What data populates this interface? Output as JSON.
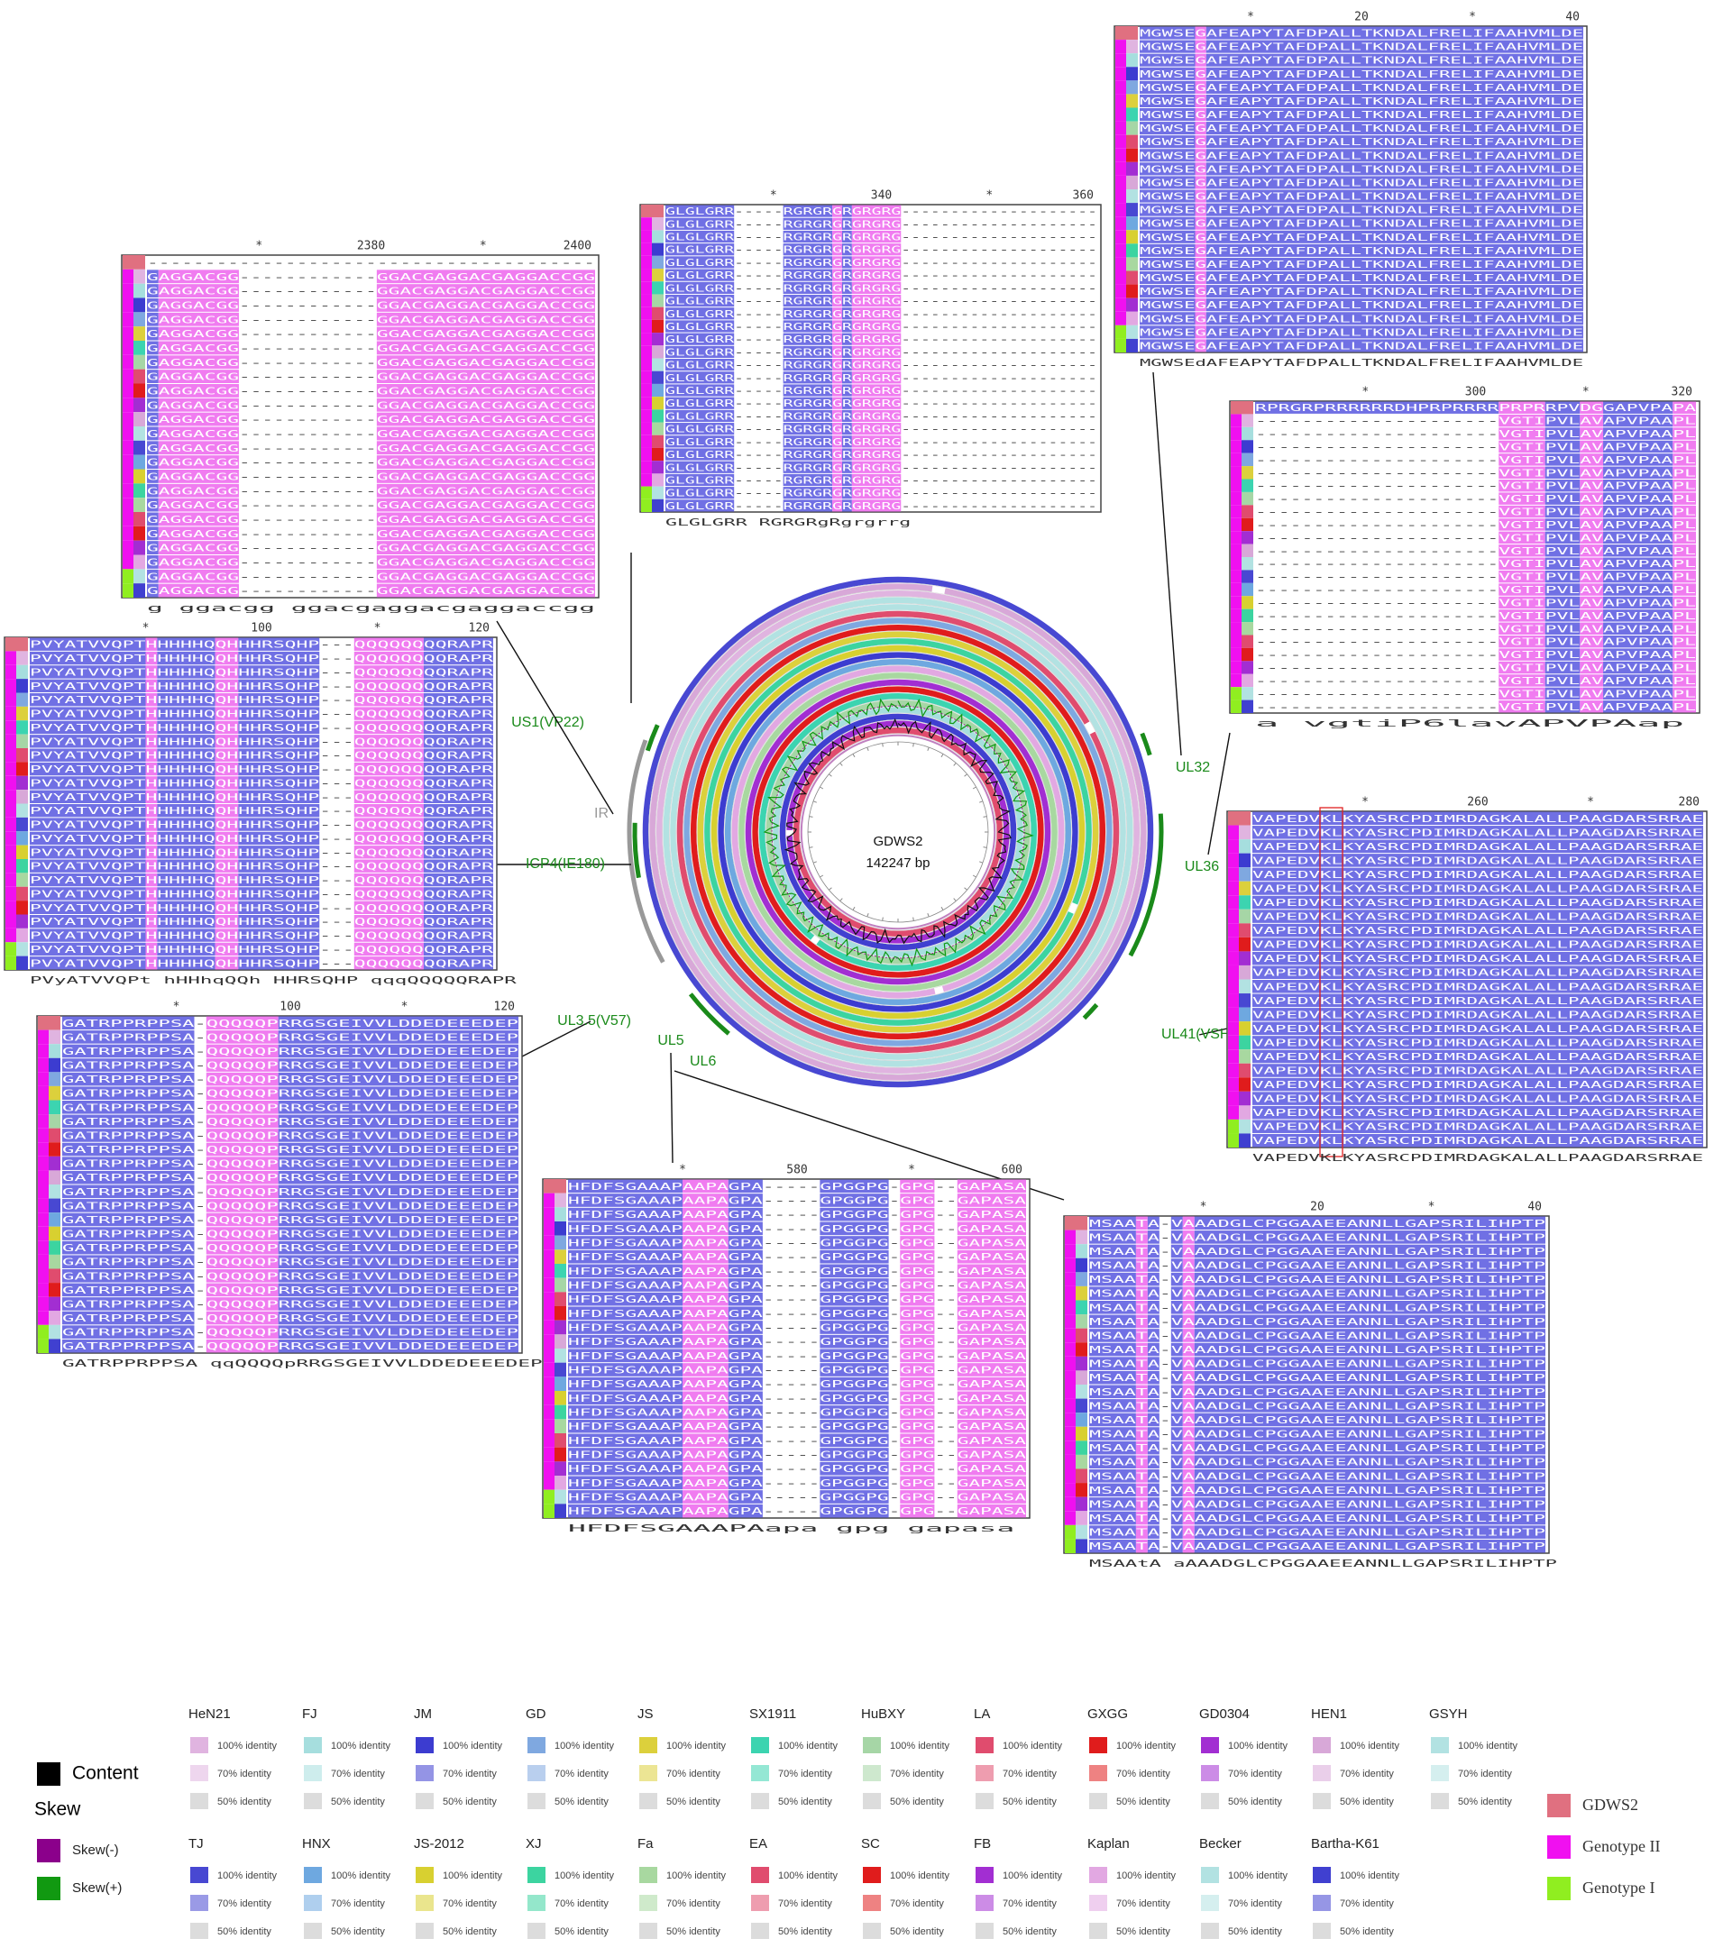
{
  "center": {
    "name": "GDWS2",
    "length": "142247 bp"
  },
  "genes": [
    "US1(VP22)",
    "IR",
    "ICP4(IE180)",
    "UL3.5(V57)",
    "UL5",
    "UL6",
    "UL32",
    "UL36",
    "UL41(VSH)"
  ],
  "panels": [
    {
      "ticks": [
        "*",
        "20",
        "*",
        "40"
      ],
      "row": "MGWSEGAFEAPYTAFDPALLTKNDALFRELIFAAHVMLDE",
      "consensus": "MGWSEdAFEAPYTAFDPALLTKNDALFRELIFAAHVMLDE"
    },
    {
      "ticks": [
        "*",
        "340",
        "*",
        "360"
      ],
      "row": "GLGLGRR-----RGRGRGRGRGRG--------------------",
      "consensus": "GLGLGRR     RGRGRgRgrgrrg"
    },
    {
      "ticks": [
        "*",
        "2380",
        "*",
        "2400"
      ],
      "top_row": "---------------------------------------",
      "row": "GAGGACGG------------GGACGAGGACGAGGACCGG",
      "consensus": "g ggacgg            ggacgaggacgaggaccgg"
    },
    {
      "ticks": [
        "*",
        "100",
        "*",
        "120"
      ],
      "row": "PVYATVVQPTHHHHHQQHHHRSQHP---QQQQQQQQRAPR",
      "consensus": "PVyATVVQPt hHHhqQQh HHRSQHP   qqqQQQQQRAPR"
    },
    {
      "ticks": [
        "*",
        "100",
        "*",
        "120"
      ],
      "row": "GATRPPRPPSA-QQQQQPRRGSGEIVVLDDEDEEEDEP",
      "consensus": "GATRPPRPPSA  qqQQQQpRRGSGEIVVLDDEDEEEDEP"
    },
    {
      "ticks": [
        "*",
        "580",
        "*",
        "600"
      ],
      "row": "HFDFSGAAAPAAPAGPA-----GPGGPG-GPG--GAPASA",
      "consensus": "HFDFSGAAAPAapa              gpg  gapasa"
    },
    {
      "ticks": [
        "*",
        "20",
        "*",
        "40"
      ],
      "row": "MSAATA-VAAADGLCPGGAAEEANNLLGAPSRILIHPTP",
      "consensus": "MSAAtA  aAAADGLCPGGAAEEANNLLGAPSRILIHPTP"
    },
    {
      "ticks": [
        "*",
        "300",
        "*",
        "320"
      ],
      "top_row": "RPRGRPRRRRRRDHPRPRRRRPRPRRPVDGGAPVPAPA",
      "row": "---------------------VGTIPVLAVAPVPAAPL",
      "consensus": "a                    vgtiP6lavAPVPAap"
    },
    {
      "ticks": [
        "*",
        "260",
        "*",
        "280"
      ],
      "row": "VAPEDVKLKYASRCPDIMRDAGKALALLPAAGDARSRRAE",
      "consensus": "VAPEDVKLKYASRCPDIMRDAGKALALLPAAGDARSRRAE"
    }
  ],
  "legend": {
    "content": "Content",
    "skew": "Skew",
    "skew_minus": "Skew(-)",
    "skew_plus": "Skew(+)",
    "skew_minus_color": "#8b008b",
    "skew_plus_color": "#119911",
    "identity_labels": [
      "100% identity",
      "70% identity",
      "50% identity"
    ],
    "strains": [
      {
        "name": "HeN21",
        "color": "#e0b4e0"
      },
      {
        "name": "FJ",
        "color": "#a6dede"
      },
      {
        "name": "JM",
        "color": "#3c3cd0"
      },
      {
        "name": "GD",
        "color": "#7fa8e0"
      },
      {
        "name": "JS",
        "color": "#dcd03c"
      },
      {
        "name": "SX1911",
        "color": "#3cd4b0"
      },
      {
        "name": "HuBXY",
        "color": "#a6d6a6"
      },
      {
        "name": "LA",
        "color": "#e04c6e"
      },
      {
        "name": "GXGG",
        "color": "#e01c1c"
      },
      {
        "name": "GD0304",
        "color": "#a22ed2"
      },
      {
        "name": "HEN1",
        "color": "#d8a8d8"
      },
      {
        "name": "GSYH",
        "color": "#b2e2e2"
      },
      {
        "name": "TJ",
        "color": "#4848d2"
      },
      {
        "name": "HNX",
        "color": "#6ea8e0"
      },
      {
        "name": "JS-2012",
        "color": "#d8d030"
      },
      {
        "name": "XJ",
        "color": "#3cd4a0"
      },
      {
        "name": "Fa",
        "color": "#a8d8a0"
      },
      {
        "name": "EA",
        "color": "#e04c6e"
      },
      {
        "name": "SC",
        "color": "#e01c1c"
      },
      {
        "name": "FB",
        "color": "#a22ed2"
      },
      {
        "name": "Kaplan",
        "color": "#e2a8e2"
      },
      {
        "name": "Becker",
        "color": "#b2e2e2"
      },
      {
        "name": "Bartha-K61",
        "color": "#4040d0"
      }
    ],
    "groups": [
      {
        "name": "GDWS2",
        "color": "#e07080"
      },
      {
        "name": "Genotype II",
        "color": "#f010f0"
      },
      {
        "name": "Genotype I",
        "color": "#90ee20"
      }
    ]
  }
}
